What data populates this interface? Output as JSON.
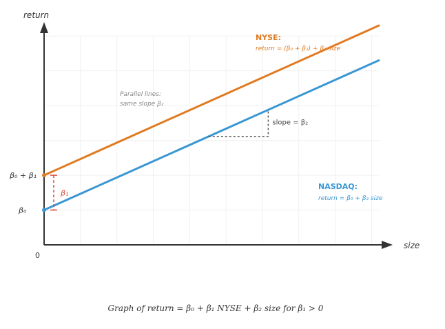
{
  "chart_data": {
    "type": "line",
    "caption": "Graph of return = β₀ + β₁ NYSE + β₂ size for β₁ > 0",
    "xlabel": "size",
    "ylabel": "return",
    "origin_label": "0",
    "grid": true,
    "y_tick_labels": [
      {
        "label": "β₀",
        "value": 0.5
      },
      {
        "label": "β₀ + β₁",
        "value": 1.0
      }
    ],
    "xlim": [
      0,
      4.6
    ],
    "ylim": [
      0,
      3.2
    ],
    "series": [
      {
        "name": "NYSE:",
        "label": "return = (β₀ + β₁) + β₂ size",
        "color": "#e07b22",
        "x": [
          0,
          4.6
        ],
        "y": [
          1.0,
          3.15
        ]
      },
      {
        "name": "NASDAQ:",
        "label": "return = β₀ + β₂ size",
        "color": "#3a97d4",
        "x": [
          0,
          4.6
        ],
        "y": [
          0.5,
          2.65
        ]
      }
    ],
    "annotations": {
      "parallel_note": [
        "Parallel lines:",
        "same slope β₂"
      ],
      "slope_label": "slope = β₂",
      "slope_x": [
        2.26,
        3.08
      ],
      "intercept_gap_label": "β₁",
      "intercept_gap_color": "#e0453a"
    }
  }
}
